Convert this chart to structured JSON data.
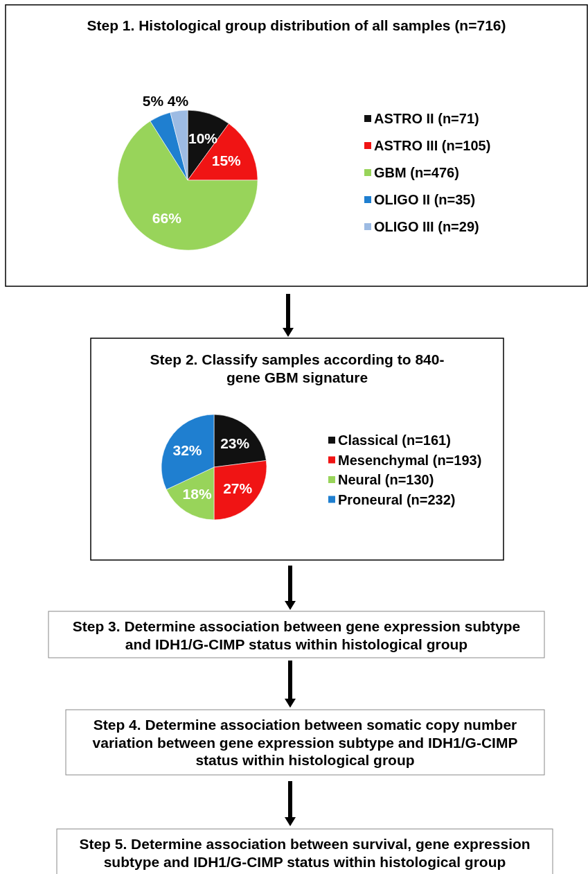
{
  "chart_data": [
    {
      "type": "pie",
      "title": "Step 1. Histological group distribution of all samples (n=716)",
      "categories": [
        "ASTRO II (n=71)",
        "ASTRO III (n=105)",
        "GBM (n=476)",
        "OLIGO II (n=35)",
        "OLIGO III (n=29)"
      ],
      "values": [
        10,
        15,
        66,
        5,
        4
      ],
      "colors": [
        "#111111",
        "#f01414",
        "#98d45a",
        "#1f7fd0",
        "#9dbbe3"
      ],
      "value_labels": [
        "10%",
        "15%",
        "66%",
        "5%",
        "4%"
      ],
      "legend": "right"
    },
    {
      "type": "pie",
      "title": "Step 2. Classify samples according to 840-gene GBM signature",
      "categories": [
        "Classical (n=161)",
        "Mesenchymal (n=193)",
        "Neural (n=130)",
        "Proneural (n=232)"
      ],
      "values": [
        23,
        27,
        18,
        32
      ],
      "colors": [
        "#111111",
        "#f01414",
        "#98d45a",
        "#1f7fd0"
      ],
      "value_labels": [
        "23%",
        "27%",
        "18%",
        "32%"
      ],
      "legend": "right"
    },
    {
      "type": "other",
      "title": "Step 3. Determine association between gene expression subtype and IDH1/G-CIMP status within histological group"
    },
    {
      "type": "other",
      "title": "Step 4. Determine association between somatic copy number variation between gene expression subtype and IDH1/G-CIMP status within histological group"
    },
    {
      "type": "other",
      "title": "Step 5. Determine association between survival, gene expression subtype and IDH1/G-CIMP status within histological group"
    }
  ]
}
